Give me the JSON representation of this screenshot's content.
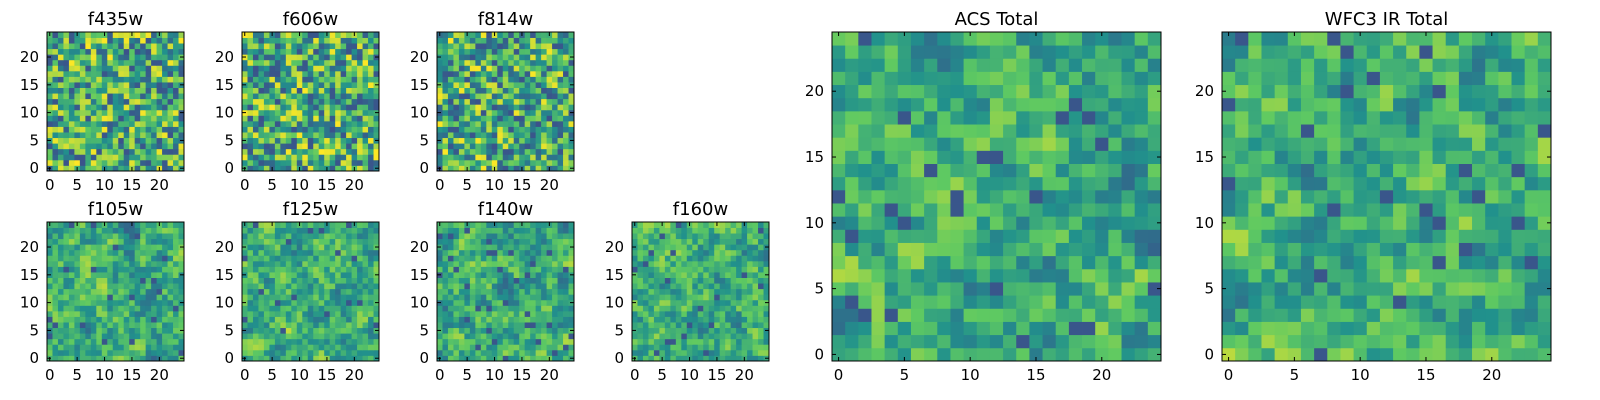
{
  "chart_data": [
    {
      "type": "heatmap",
      "title": "f435w",
      "grid_size": 25,
      "xlim": [
        0,
        24
      ],
      "ylim": [
        0,
        24
      ],
      "xticks": [
        "0",
        "5",
        "10",
        "15",
        "20"
      ],
      "yticks": [
        "0",
        "5",
        "10",
        "15",
        "20"
      ],
      "colormap": "viridis",
      "grid": false
    },
    {
      "type": "heatmap",
      "title": "f606w",
      "grid_size": 25,
      "xlim": [
        0,
        24
      ],
      "ylim": [
        0,
        24
      ],
      "xticks": [
        "0",
        "5",
        "10",
        "15",
        "20"
      ],
      "yticks": [
        "0",
        "5",
        "10",
        "15",
        "20"
      ],
      "colormap": "viridis",
      "grid": false
    },
    {
      "type": "heatmap",
      "title": "f814w",
      "grid_size": 25,
      "xlim": [
        0,
        24
      ],
      "ylim": [
        0,
        24
      ],
      "xticks": [
        "0",
        "5",
        "10",
        "15",
        "20"
      ],
      "yticks": [
        "0",
        "5",
        "10",
        "15",
        "20"
      ],
      "colormap": "viridis",
      "grid": false
    },
    {
      "type": "heatmap",
      "title": "f105w",
      "grid_size": 25,
      "xlim": [
        0,
        24
      ],
      "ylim": [
        0,
        24
      ],
      "xticks": [
        "0",
        "5",
        "10",
        "15",
        "20"
      ],
      "yticks": [
        "0",
        "5",
        "10",
        "15",
        "20"
      ],
      "colormap": "viridis",
      "grid": false
    },
    {
      "type": "heatmap",
      "title": "f125w",
      "grid_size": 25,
      "xlim": [
        0,
        24
      ],
      "ylim": [
        0,
        24
      ],
      "xticks": [
        "0",
        "5",
        "10",
        "15",
        "20"
      ],
      "yticks": [
        "0",
        "5",
        "10",
        "15",
        "20"
      ],
      "colormap": "viridis",
      "grid": false
    },
    {
      "type": "heatmap",
      "title": "f140w",
      "grid_size": 25,
      "xlim": [
        0,
        24
      ],
      "ylim": [
        0,
        24
      ],
      "xticks": [
        "0",
        "5",
        "10",
        "15",
        "20"
      ],
      "yticks": [
        "0",
        "5",
        "10",
        "15",
        "20"
      ],
      "colormap": "viridis",
      "grid": false
    },
    {
      "type": "heatmap",
      "title": "f160w",
      "grid_size": 25,
      "xlim": [
        0,
        24
      ],
      "ylim": [
        0,
        24
      ],
      "xticks": [
        "0",
        "5",
        "10",
        "15",
        "20"
      ],
      "yticks": [
        "0",
        "5",
        "10",
        "15",
        "20"
      ],
      "colormap": "viridis",
      "grid": false
    },
    {
      "type": "heatmap",
      "title": "ACS Total",
      "grid_size": 25,
      "xlim": [
        0,
        24
      ],
      "ylim": [
        0,
        24
      ],
      "xticks": [
        "0",
        "5",
        "10",
        "15",
        "20"
      ],
      "yticks": [
        "0",
        "5",
        "10",
        "15",
        "20"
      ],
      "colormap": "viridis",
      "grid": false
    },
    {
      "type": "heatmap",
      "title": "WFC3 IR Total",
      "grid_size": 25,
      "xlim": [
        0,
        24
      ],
      "ylim": [
        0,
        24
      ],
      "xticks": [
        "0",
        "5",
        "10",
        "15",
        "20"
      ],
      "yticks": [
        "0",
        "5",
        "10",
        "15",
        "20"
      ],
      "colormap": "viridis",
      "grid": false
    }
  ],
  "colors": {
    "viridis_ramp": [
      "#440154",
      "#3b528b",
      "#21918c",
      "#5ec962",
      "#fde725"
    ],
    "axis": "#000000",
    "background": "#ffffff"
  }
}
